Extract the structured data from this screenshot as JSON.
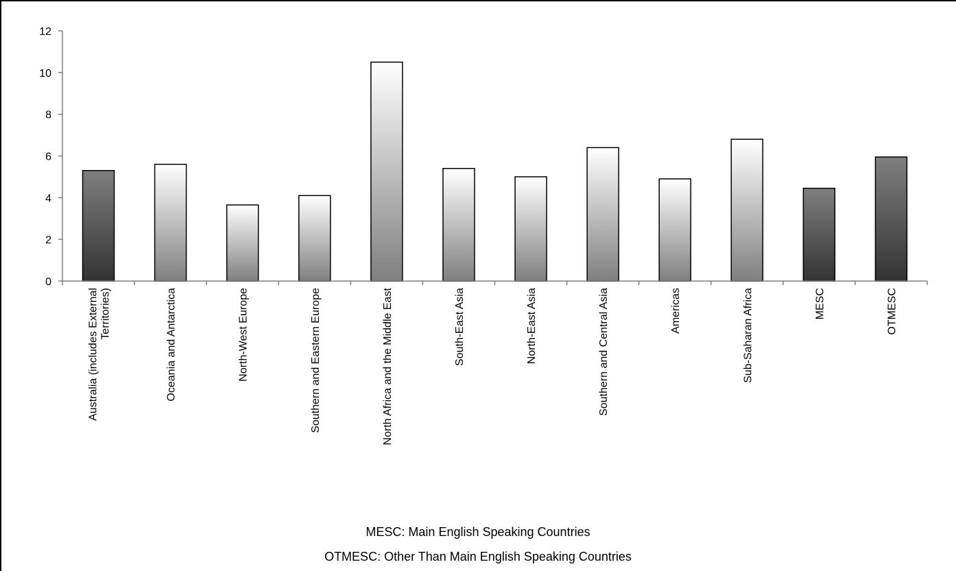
{
  "chart_data": {
    "type": "bar",
    "categories": [
      "Australia (includes External Territories)",
      "Oceania and Antarctica",
      "North-West Europe",
      "Southern and Eastern Europe",
      "North Africa and the Middle East",
      "South-East Asia",
      "North-East Asia",
      "Southern and Central Asia",
      "Americas",
      "Sub-Saharan Africa",
      "MESC",
      "OTMESC"
    ],
    "category_lines": [
      [
        "Australia (includes External",
        "Territories)"
      ],
      [
        "Oceania and Antarctica"
      ],
      [
        "North-West Europe"
      ],
      [
        "Southern and Eastern Europe"
      ],
      [
        "North Africa and the Middle East"
      ],
      [
        "South-East Asia"
      ],
      [
        "North-East Asia"
      ],
      [
        "Southern and Central Asia"
      ],
      [
        "Americas"
      ],
      [
        "Sub-Saharan Africa"
      ],
      [
        "MESC"
      ],
      [
        "OTMESC"
      ]
    ],
    "values": [
      5.3,
      5.6,
      3.65,
      4.1,
      10.5,
      5.4,
      5.0,
      6.4,
      4.9,
      6.8,
      4.45,
      5.95
    ],
    "bar_styles": [
      "dark",
      "light",
      "light",
      "light",
      "light",
      "light",
      "light",
      "light",
      "light",
      "light",
      "dark",
      "dark"
    ],
    "ylim": [
      0,
      12
    ],
    "yticks": [
      "0",
      "2",
      "4",
      "6",
      "8",
      "10",
      "12"
    ],
    "xlabel": "",
    "ylabel": "",
    "title": "",
    "grid": false,
    "legend": "none",
    "colors": {
      "dark_bottom": "#333333",
      "dark_top": "#7f7f7f",
      "light_bottom": "#7f7f7f",
      "light_top": "#ffffff",
      "bar_border": "#000000",
      "axis": "#7f7f7f"
    }
  },
  "footnotes": {
    "mesc": "MESC: Main English Speaking Countries",
    "otmesc": "OTMESC: Other Than Main English Speaking Countries"
  }
}
